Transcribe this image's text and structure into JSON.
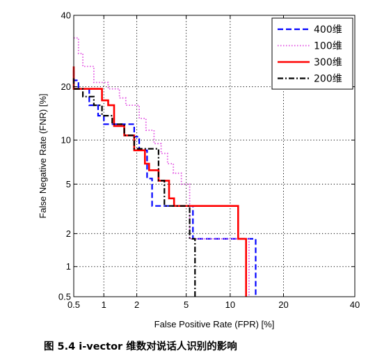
{
  "caption": "图 5.4  i-vector 维数对说话人识别的影响",
  "chart_data": {
    "type": "line",
    "title": "",
    "xlabel": "False Positive Rate (FPR) [%]",
    "ylabel": "False Negative Rate (FNR) [%]",
    "x_scale": "probit",
    "y_scale": "probit",
    "xlim": [
      0.5,
      40
    ],
    "ylim": [
      0.5,
      40
    ],
    "x_ticks": [
      0.5,
      1,
      2,
      5,
      10,
      20,
      40
    ],
    "y_ticks": [
      0.5,
      1,
      2,
      5,
      10,
      20,
      40
    ],
    "x_tick_labels": [
      "0.5",
      "1",
      "2",
      "5",
      "10",
      "20",
      "40"
    ],
    "y_tick_labels": [
      "0.5",
      "1",
      "2",
      "5",
      "10",
      "20",
      "40"
    ],
    "grid": true,
    "legend_position": "top-right",
    "series": [
      {
        "name": "400维",
        "color": "#0000ff",
        "dash": "dashed",
        "x": [
          0.5,
          0.5,
          0.56,
          0.56,
          0.72,
          0.72,
          0.88,
          0.88,
          1.0,
          1.0,
          1.4,
          1.4,
          1.9,
          1.9,
          2.1,
          2.1,
          2.45,
          2.45,
          2.7,
          2.7,
          5.2,
          5.2,
          5.6,
          5.6,
          14.2,
          14.2
        ],
        "y": [
          24,
          21.5,
          21.5,
          19.5,
          19.5,
          16,
          16,
          14,
          14,
          12.5,
          12.5,
          12.5,
          12.5,
          10.5,
          10.5,
          8.6,
          8.6,
          5.5,
          5.5,
          3.4,
          3.4,
          3.4,
          3.4,
          1.8,
          1.8,
          0.5
        ]
      },
      {
        "name": "100维",
        "color": "#e04ae0",
        "dash": "dotted",
        "x": [
          0.5,
          0.56,
          0.56,
          0.62,
          0.62,
          0.8,
          0.8,
          1.1,
          1.1,
          1.4,
          1.4,
          1.6,
          1.6,
          2.1,
          2.1,
          2.4,
          2.4,
          2.8,
          2.8,
          3.2,
          3.2,
          3.6,
          3.6,
          4.0,
          4.0,
          4.6,
          4.6,
          5.3,
          5.3,
          13.0,
          13.0
        ],
        "y": [
          33,
          33,
          28.5,
          28.5,
          25,
          25,
          21,
          21,
          19.5,
          19.5,
          17.5,
          17.5,
          16,
          16,
          13.5,
          13.5,
          11.5,
          11.5,
          9.5,
          9.5,
          8.2,
          8.2,
          7,
          7,
          6,
          6,
          5,
          5,
          1.8,
          1.8,
          0.5
        ]
      },
      {
        "name": "300维",
        "color": "#ff0000",
        "dash": "solid",
        "x": [
          0.5,
          0.5,
          0.96,
          0.96,
          1.1,
          1.1,
          1.25,
          1.25,
          1.55,
          1.55,
          1.9,
          1.9,
          2.35,
          2.35,
          2.55,
          2.55,
          3.05,
          3.05,
          3.7,
          3.7,
          4.05,
          4.05,
          4.6,
          4.6,
          11.2,
          11.2,
          12.5,
          12.5
        ],
        "y": [
          25,
          19.5,
          19.5,
          17,
          17,
          16,
          16,
          12.2,
          12.2,
          10.7,
          10.7,
          8.6,
          8.6,
          7,
          7,
          6.3,
          6.3,
          5.3,
          5.3,
          3.9,
          3.9,
          3.4,
          3.4,
          3.4,
          3.4,
          1.8,
          1.8,
          0.5
        ]
      },
      {
        "name": "200维",
        "color": "#000000",
        "dash": "dashdot",
        "x": [
          0.5,
          0.5,
          0.62,
          0.62,
          0.8,
          0.8,
          0.96,
          0.96,
          1.2,
          1.2,
          1.55,
          1.55,
          1.9,
          1.9,
          2.3,
          2.3,
          3.05,
          3.05,
          3.4,
          3.4,
          5.3,
          5.3,
          5.8,
          5.8
        ],
        "y": [
          22,
          19.5,
          19.5,
          17.8,
          17.8,
          16,
          16,
          14,
          14,
          12.5,
          12.5,
          10.7,
          10.7,
          8.8,
          8.8,
          8.8,
          8.8,
          5.3,
          5.3,
          3.4,
          3.4,
          1.8,
          1.8,
          0.5
        ]
      }
    ]
  }
}
